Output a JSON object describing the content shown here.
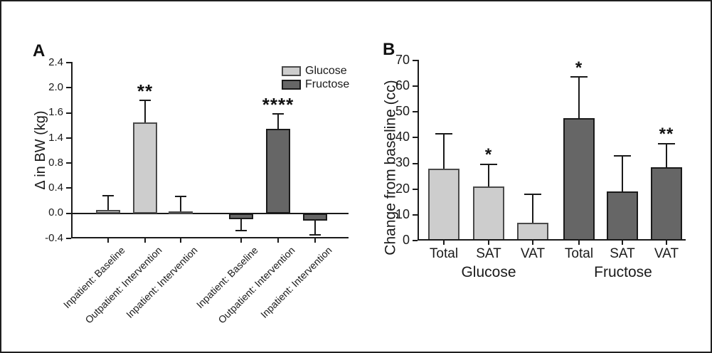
{
  "figure": {
    "panel_a_letter": "A",
    "panel_b_letter": "B"
  },
  "colors": {
    "background": "#ffffff",
    "frame": "#1f1f1f",
    "axis": "#1a1a1a",
    "text": "#1a1a1a",
    "series": {
      "Glucose": {
        "fill": "#cdcdcd",
        "border": "#4a4a4a"
      },
      "Fructose": {
        "fill": "#666666",
        "border": "#1a1a1a"
      }
    }
  },
  "chart_data": [
    {
      "id": "panel-a",
      "type": "bar",
      "title": "",
      "ylabel": "Δ in BW (kg)",
      "ylim": [
        -0.4,
        2.4
      ],
      "ytick_labels": [
        "2.4",
        "2.0",
        "1.6",
        "1.4",
        "0.8",
        "0.4",
        "0.0",
        "-0.4"
      ],
      "axis_note": "ticks evenly spaced 0.4 apart; the tick between 1.6 and 0.8 is printed as 1.4 in the source figure",
      "grid": false,
      "legend": {
        "position": "top-right",
        "items": [
          {
            "label": "Glucose"
          },
          {
            "label": "Fructose"
          }
        ]
      },
      "groups": [
        "Glucose",
        "Fructose"
      ],
      "bars": [
        {
          "category": "Inpatient: Baseline",
          "group": "Glucose",
          "value": 0.05,
          "error_to": 0.28,
          "sig": ""
        },
        {
          "category": "Outpatient: Intervention",
          "group": "Glucose",
          "value": 1.45,
          "error_to": 1.8,
          "sig": "**"
        },
        {
          "category": "Inpatient: Intervention",
          "group": "Glucose",
          "value": 0.03,
          "error_to": 0.27,
          "sig": ""
        },
        {
          "category": "Inpatient: Baseline",
          "group": "Fructose",
          "value": -0.09,
          "error_to": -0.28,
          "sig": ""
        },
        {
          "category": "Outpatient: Intervention",
          "group": "Fructose",
          "value": 1.35,
          "error_to": 1.58,
          "sig": "****"
        },
        {
          "category": "Inpatient: Intervention",
          "group": "Fructose",
          "value": -0.12,
          "error_to": -0.34,
          "sig": ""
        }
      ]
    },
    {
      "id": "panel-b",
      "type": "bar",
      "title": "",
      "ylabel": "Change from baseline (cc)",
      "ylim": [
        0,
        70
      ],
      "ytick_labels": [
        "70",
        "60",
        "50",
        "40",
        "30",
        "20",
        "10",
        "0"
      ],
      "grid": false,
      "legend": {
        "position": "none",
        "items": []
      },
      "groups": [
        "Glucose",
        "Fructose"
      ],
      "group_labels": [
        "Glucose",
        "Fructose"
      ],
      "bars": [
        {
          "category": "Total",
          "group": "Glucose",
          "value": 28,
          "error_to": 41.5,
          "sig": ""
        },
        {
          "category": "SAT",
          "group": "Glucose",
          "value": 21,
          "error_to": 29.5,
          "sig": "*"
        },
        {
          "category": "VAT",
          "group": "Glucose",
          "value": 7,
          "error_to": 18,
          "sig": ""
        },
        {
          "category": "Total",
          "group": "Fructose",
          "value": 47.5,
          "error_to": 63.5,
          "sig": "*"
        },
        {
          "category": "SAT",
          "group": "Fructose",
          "value": 19,
          "error_to": 33,
          "sig": ""
        },
        {
          "category": "VAT",
          "group": "Fructose",
          "value": 28.5,
          "error_to": 37.5,
          "sig": "**"
        }
      ]
    }
  ]
}
